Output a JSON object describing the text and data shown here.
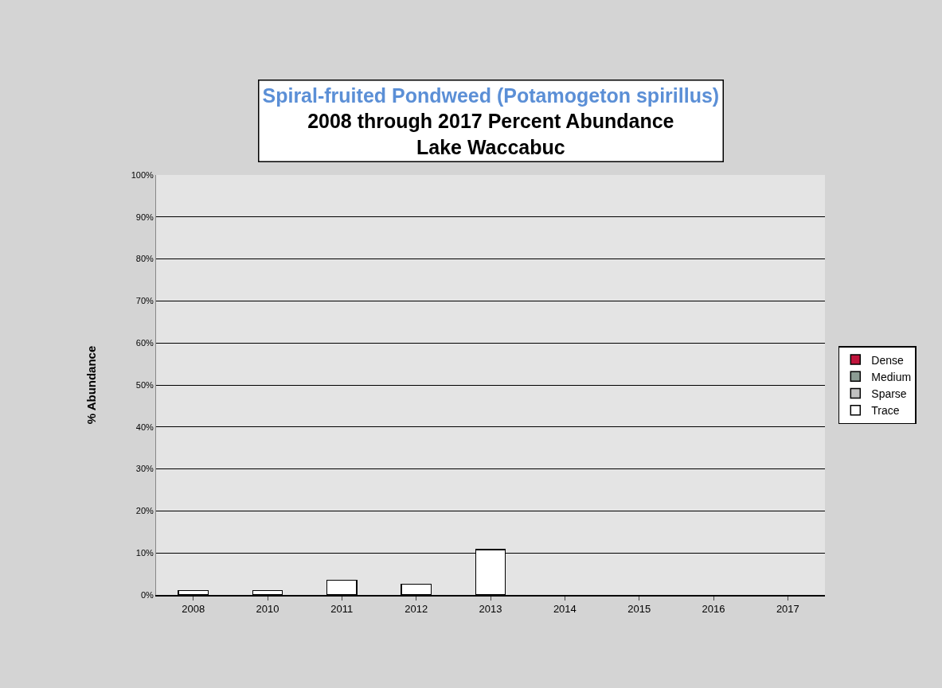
{
  "chart_data": {
    "type": "bar",
    "stacked": true,
    "title": "Spiral-fruited Pondweed (Potamogeton spirillus)",
    "subtitle": "2008 through 2017 Percent Abundance\nLake Waccabuc",
    "ylabel": "% Abundance",
    "categories": [
      "2008",
      "2010",
      "2011",
      "2012",
      "2013",
      "2014",
      "2015",
      "2016",
      "2017"
    ],
    "series": [
      {
        "name": "Trace",
        "color": "#ffffff",
        "values": [
          1.0,
          1.0,
          3.5,
          2.6,
          10.8,
          null,
          null,
          null,
          null
        ]
      },
      {
        "name": "Sparse",
        "color": "#c0c0c0",
        "values": [
          null,
          null,
          null,
          null,
          null,
          null,
          null,
          null,
          null
        ]
      },
      {
        "name": "Medium",
        "color": "#8c9c94",
        "values": [
          null,
          null,
          null,
          null,
          null,
          null,
          null,
          null,
          null
        ]
      },
      {
        "name": "Dense",
        "color": "#c0143c",
        "values": [
          null,
          null,
          null,
          null,
          null,
          null,
          null,
          null,
          null
        ]
      }
    ],
    "ylim": [
      0,
      100
    ],
    "yticks": [
      {
        "value": 0,
        "label": "0%"
      },
      {
        "value": 10,
        "label": "10%"
      },
      {
        "value": 20,
        "label": "20%"
      },
      {
        "value": 30,
        "label": "30%"
      },
      {
        "value": 40,
        "label": "40%"
      },
      {
        "value": 50,
        "label": "50%"
      },
      {
        "value": 60,
        "label": "60%"
      },
      {
        "value": 70,
        "label": "70%"
      },
      {
        "value": 80,
        "label": "80%"
      },
      {
        "value": 90,
        "label": "90%"
      },
      {
        "value": 100,
        "label": "100%"
      }
    ],
    "grid": "y",
    "legend": "right"
  }
}
